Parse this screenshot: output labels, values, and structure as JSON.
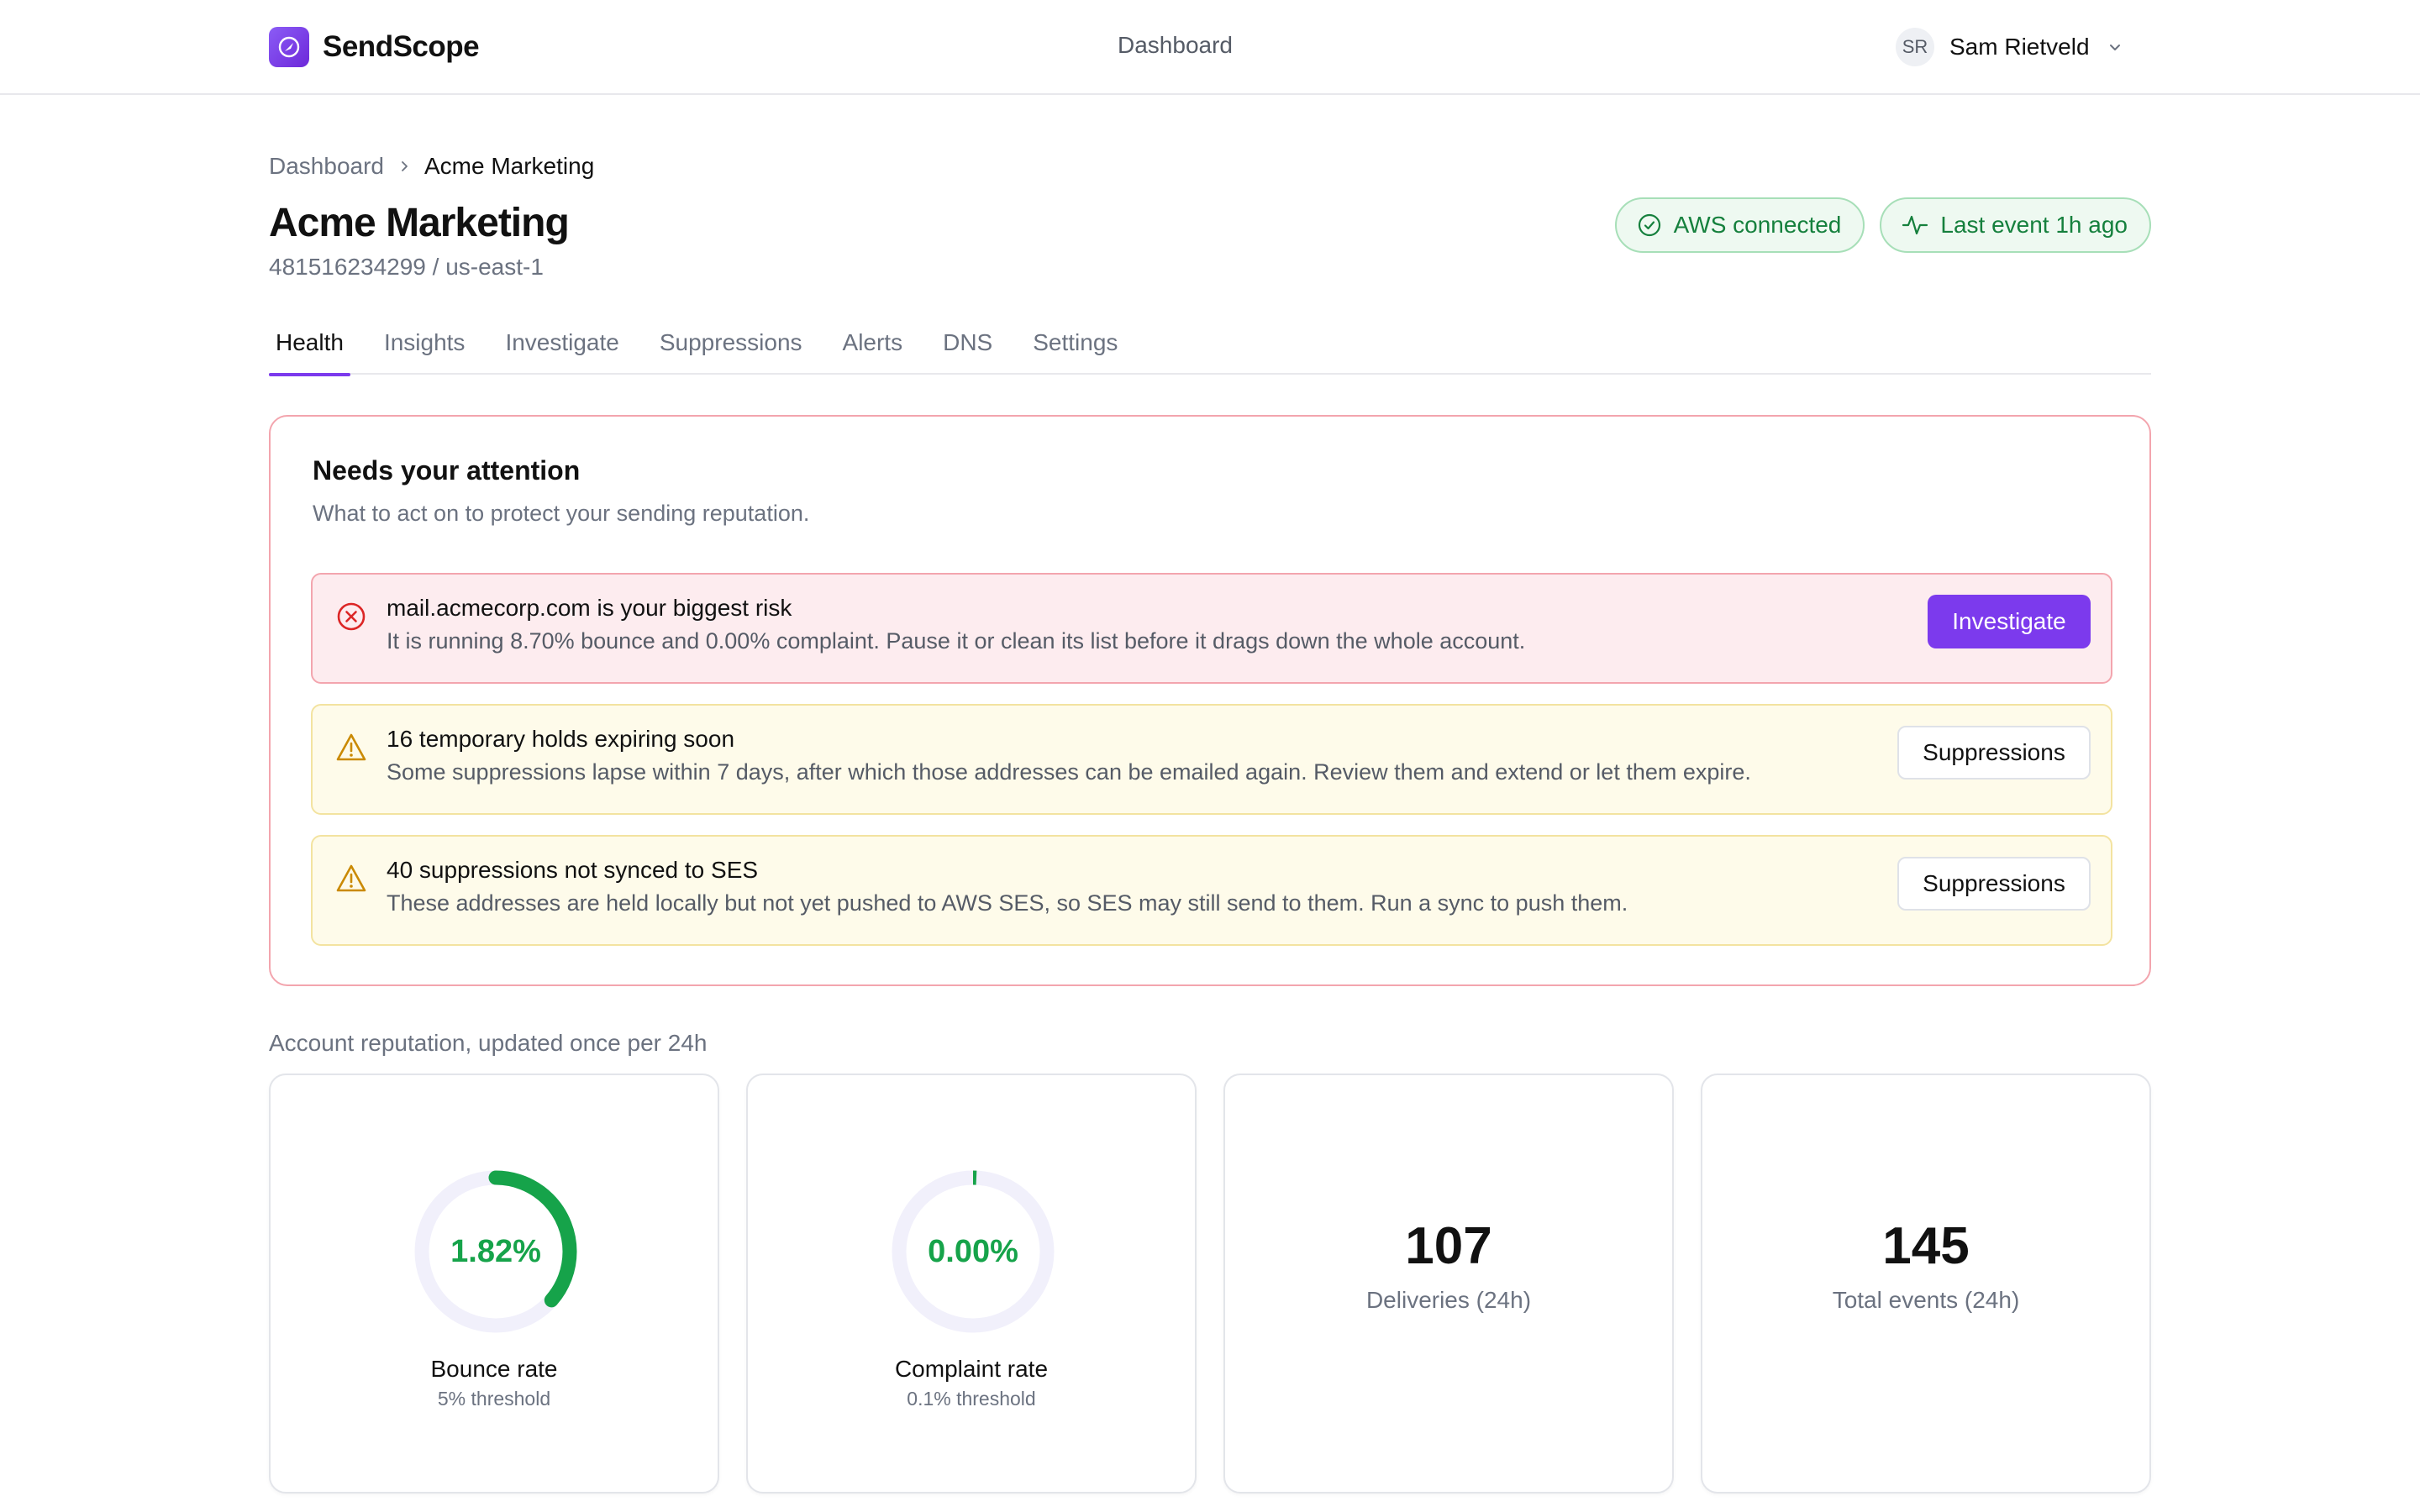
{
  "app": {
    "name": "SendScope",
    "top_nav_link": "Dashboard"
  },
  "user": {
    "initials": "SR",
    "name": "Sam Rietveld"
  },
  "breadcrumb": {
    "parent": "Dashboard",
    "current": "Acme Marketing"
  },
  "page": {
    "title": "Acme Marketing",
    "subtitle": "481516234299 / us-east-1"
  },
  "status": {
    "aws": "AWS connected",
    "last_event": "Last event 1h ago"
  },
  "tabs": [
    {
      "label": "Health",
      "active": true
    },
    {
      "label": "Insights",
      "active": false
    },
    {
      "label": "Investigate",
      "active": false
    },
    {
      "label": "Suppressions",
      "active": false
    },
    {
      "label": "Alerts",
      "active": false
    },
    {
      "label": "DNS",
      "active": false
    },
    {
      "label": "Settings",
      "active": false
    }
  ],
  "attention": {
    "title": "Needs your attention",
    "description": "What to act on to protect your sending reputation.",
    "alerts": [
      {
        "severity": "danger",
        "icon": "x-circle-icon",
        "title": "mail.acmecorp.com is your biggest risk",
        "text": "It is running 8.70% bounce and 0.00% complaint. Pause it or clean its list before it drags down the whole account.",
        "action": "Investigate"
      },
      {
        "severity": "warning",
        "icon": "warning-triangle-icon",
        "title": "16 temporary holds expiring soon",
        "text": "Some suppressions lapse within 7 days, after which those addresses can be emailed again. Review them and extend or let them expire.",
        "action": "Suppressions"
      },
      {
        "severity": "warning",
        "icon": "warning-triangle-icon",
        "title": "40 suppressions not synced to SES",
        "text": "These addresses are held locally but not yet pushed to AWS SES, so SES may still send to them. Run a sync to push them.",
        "action": "Suppressions"
      }
    ]
  },
  "reputation": {
    "label": "Account reputation, updated once per 24h",
    "bounce": {
      "value": "1.82%",
      "fraction_of_threshold": 0.364,
      "label": "Bounce rate",
      "threshold": "5% threshold"
    },
    "complaint": {
      "value": "0.00%",
      "fraction_of_threshold": 0.0,
      "label": "Complaint rate",
      "threshold": "0.1% threshold"
    },
    "deliveries": {
      "value": "107",
      "label": "Deliveries (24h)"
    },
    "total_events": {
      "value": "145",
      "label": "Total events (24h)"
    }
  },
  "colors": {
    "accent": "#7c3aed",
    "success": "#16a34a",
    "danger": "#dc2626",
    "warning": "#ca8a04"
  }
}
